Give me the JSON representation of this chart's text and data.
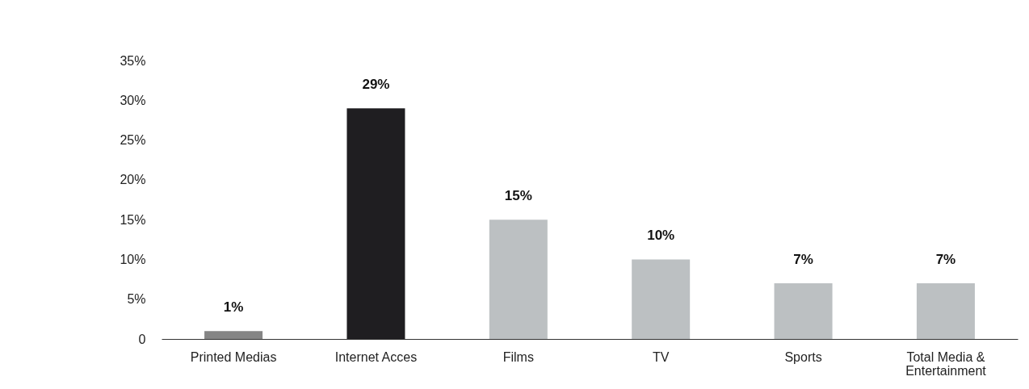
{
  "chart_data": {
    "type": "bar",
    "categories": [
      "Printed Medias",
      "Internet Acces",
      "Films",
      "TV",
      "Sports",
      "Total Media & Entertainment"
    ],
    "values": [
      1,
      29,
      15,
      10,
      7,
      7
    ],
    "colors": [
      "#858585",
      "#1f1e21",
      "#bcc0c2",
      "#bcc0c2",
      "#bcc0c2",
      "#bcc0c2"
    ],
    "value_labels": [
      "1%",
      "29%",
      "15%",
      "10%",
      "7%",
      "7%"
    ],
    "ylim": [
      0,
      35
    ],
    "yticks": [
      0,
      {
        "value": 5,
        "label": "5%"
      },
      {
        "value": 10,
        "label": "10%"
      },
      {
        "value": 15,
        "label": "15%"
      },
      {
        "value": 20,
        "label": "20%"
      },
      {
        "value": 25,
        "label": "25%"
      },
      {
        "value": 30,
        "label": "30%"
      },
      {
        "value": 35,
        "label": "35%"
      }
    ],
    "grid": false
  }
}
